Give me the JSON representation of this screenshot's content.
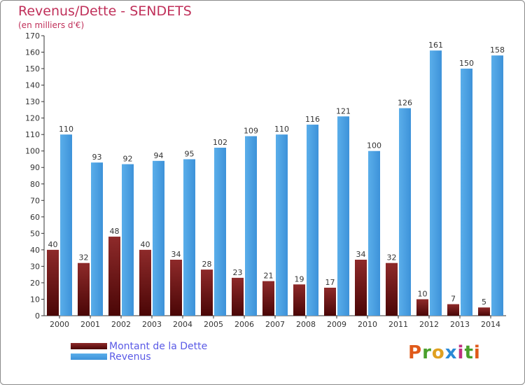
{
  "chart_data": {
    "type": "bar",
    "title": "Revenus/Dette - SENDETS",
    "subtitle": "(en milliers d'€)",
    "categories": [
      "2000",
      "2001",
      "2002",
      "2003",
      "2004",
      "2005",
      "2006",
      "2007",
      "2008",
      "2009",
      "2010",
      "2011",
      "2012",
      "2013",
      "2014"
    ],
    "series": [
      {
        "name": "Montant de la Dette",
        "values": [
          40,
          32,
          48,
          40,
          34,
          28,
          23,
          21,
          19,
          17,
          34,
          32,
          10,
          7,
          5
        ],
        "color": "#7a1616"
      },
      {
        "name": "Revenus",
        "values": [
          110,
          93,
          92,
          94,
          95,
          102,
          109,
          110,
          116,
          121,
          100,
          126,
          161,
          150,
          158
        ],
        "color": "#4da3e8"
      }
    ],
    "ylim": [
      0,
      170
    ],
    "yticks": [
      0,
      10,
      20,
      30,
      40,
      50,
      60,
      70,
      80,
      90,
      100,
      110,
      120,
      130,
      140,
      150,
      160,
      170
    ],
    "grid": false,
    "legend_position": "bottom-left"
  },
  "logo": {
    "text": "Proxiti"
  }
}
